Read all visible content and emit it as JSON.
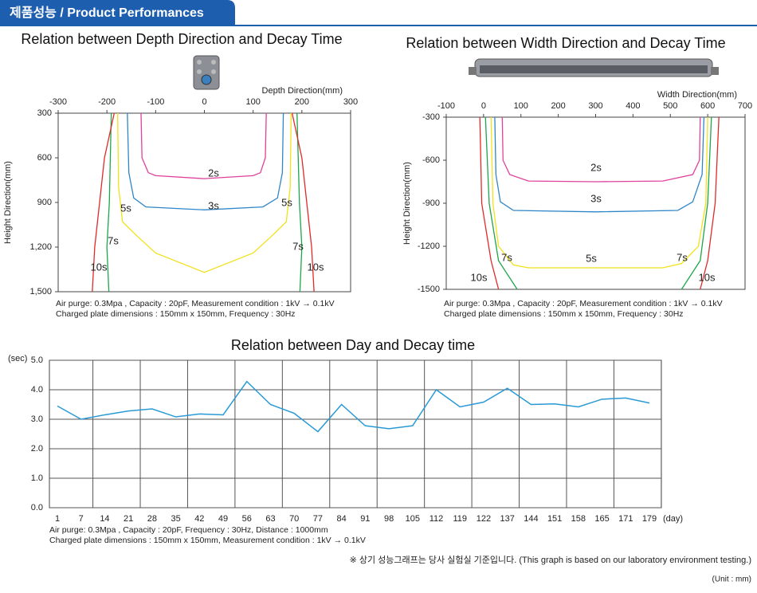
{
  "header": {
    "title": "제품성능 / Product Performances"
  },
  "chart_data": [
    {
      "type": "line",
      "title": "Relation between Depth Direction and Decay Time",
      "x_label": "Depth Direction(mm)",
      "y_label": "Height Direction(mm)",
      "xlim": [
        -300,
        300
      ],
      "xticks": [
        -300,
        -200,
        -100,
        0,
        100,
        200,
        300
      ],
      "ylim": [
        1500,
        300
      ],
      "yticks": [
        300,
        600,
        900,
        {
          "value": 1200,
          "label": "1,200"
        },
        {
          "value": 1500,
          "label": "1,500"
        }
      ],
      "series": [
        {
          "name": "2s",
          "color": "#e0409c",
          "x": [
            -130,
            -128,
            -115,
            -100,
            0,
            100,
            115,
            125,
            127
          ],
          "values": [
            300,
            600,
            700,
            720,
            740,
            720,
            700,
            600,
            300
          ]
        },
        {
          "name": "3s",
          "color": "#2f86c8",
          "x": [
            -158,
            -155,
            -145,
            -120,
            0,
            120,
            150,
            160,
            162
          ],
          "values": [
            300,
            700,
            870,
            930,
            950,
            930,
            870,
            700,
            300
          ]
        },
        {
          "name": "5s",
          "color": "#f2e11a",
          "x": [
            -178,
            -176,
            -168,
            -140,
            -100,
            0,
            100,
            140,
            168,
            176,
            178
          ],
          "values": [
            300,
            800,
            1030,
            1120,
            1240,
            1370,
            1240,
            1120,
            1030,
            800,
            300
          ]
        },
        {
          "name": "7s",
          "color": "#1ea64a",
          "x": [
            -191,
            -195,
            -200,
            -196,
            null,
            190,
            195,
            200,
            196
          ],
          "values": [
            300,
            900,
            1200,
            1500,
            null,
            300,
            900,
            1200,
            1500
          ]
        },
        {
          "name": "10s",
          "color": "#e02a2a",
          "x": [
            -185,
            -205,
            -215,
            -225,
            -230,
            null,
            180,
            200,
            210,
            220,
            225
          ],
          "values": [
            300,
            600,
            900,
            1200,
            1500,
            null,
            300,
            600,
            900,
            1200,
            1500
          ]
        }
      ],
      "notes": [
        "Air purge: 0.3Mpa , Capacity : 20pF,  Measurement condition : 1kV → 0.1kV",
        "Charged plate dimensions : 150mm x 150mm, Frequency : 30Hz"
      ]
    },
    {
      "type": "line",
      "title": "Relation between Width Direction and Decay Time",
      "x_label": "Width Direction(mm)",
      "y_label": "Height Direction(mm)",
      "xlim": [
        -100,
        700
      ],
      "xticks": [
        -100,
        0,
        100,
        200,
        300,
        400,
        500,
        600,
        700
      ],
      "ylim": [
        -1500,
        -300
      ],
      "yticks": [
        -300,
        -600,
        -900,
        -1200,
        -1500
      ],
      "series": [
        {
          "name": "2s",
          "color": "#e0409c",
          "x": [
            50,
            52,
            70,
            120,
            300,
            480,
            560,
            578,
            580
          ],
          "values": [
            -300,
            -600,
            -700,
            -745,
            -750,
            -745,
            -700,
            -600,
            -300
          ]
        },
        {
          "name": "3s",
          "color": "#2f86c8",
          "x": [
            30,
            33,
            45,
            80,
            300,
            520,
            560,
            585,
            590
          ],
          "values": [
            -300,
            -700,
            -890,
            -950,
            -960,
            -950,
            -890,
            -700,
            -300
          ]
        },
        {
          "name": "5s",
          "color": "#f2e11a",
          "x": [
            20,
            25,
            40,
            80,
            120,
            480,
            530,
            575,
            595,
            600
          ],
          "values": [
            -300,
            -900,
            -1200,
            -1330,
            -1350,
            -1350,
            -1320,
            -1200,
            -900,
            -300
          ]
        },
        {
          "name": "7s",
          "color": "#1ea64a",
          "x": [
            5,
            15,
            40,
            90,
            null,
            610,
            600,
            580,
            530
          ],
          "values": [
            -300,
            -900,
            -1300,
            -1500,
            null,
            -300,
            -900,
            -1300,
            -1500
          ]
        },
        {
          "name": "10s",
          "color": "#e02a2a",
          "x": [
            -10,
            -5,
            20,
            40,
            null,
            630,
            620,
            600,
            580
          ],
          "values": [
            -300,
            -900,
            -1300,
            -1500,
            null,
            -300,
            -900,
            -1300,
            -1500
          ]
        }
      ],
      "notes": [
        "Air purge: 0.3Mpa , Capacity : 20pF, Measurement condition : 1kV → 0.1kV",
        "Charged plate dimensions : 150mm x 150mm, Frequency : 30Hz"
      ]
    },
    {
      "type": "line",
      "title": "Relation between Day and Decay time",
      "x_label": "(day)",
      "y_label": "(sec)",
      "color": "#2a9ad6",
      "categories": [
        "1",
        "7",
        "14",
        "21",
        "28",
        "35",
        "42",
        "49",
        "56",
        "63",
        "70",
        "77",
        "84",
        "91",
        "98",
        "105",
        "112",
        "119",
        "122",
        "137",
        "144",
        "151",
        "158",
        "165",
        "171",
        "179"
      ],
      "values": [
        3.45,
        3.0,
        3.15,
        3.28,
        3.35,
        3.08,
        3.18,
        3.15,
        4.28,
        3.5,
        3.2,
        2.58,
        3.5,
        2.78,
        2.68,
        2.78,
        4.0,
        3.42,
        3.58,
        4.05,
        3.5,
        3.52,
        3.42,
        3.68,
        3.72,
        3.55
      ],
      "ylim": [
        0,
        5
      ],
      "yticks": [
        {
          "value": 0,
          "label": "0.0"
        },
        {
          "value": 1,
          "label": "1.0"
        },
        {
          "value": 2,
          "label": "2.0"
        },
        {
          "value": 3,
          "label": "3.0"
        },
        {
          "value": 4,
          "label": "4.0"
        },
        {
          "value": 5,
          "label": "5.0"
        }
      ],
      "grid": true,
      "notes": [
        "Air purge: 0.3Mpa , Capacity : 20pF,  Frequency : 30Hz, Distance : 1000mm",
        "Charged plate dimensions : 150mm x 150mm, Measurement condition : 1kV → 0.1kV"
      ]
    }
  ],
  "footer": {
    "note": "※ 상기 성능그래프는 당사 실험실 기준입니다. (This graph is based on our laboratory environment testing.)",
    "unit": "(Unit : mm)"
  }
}
